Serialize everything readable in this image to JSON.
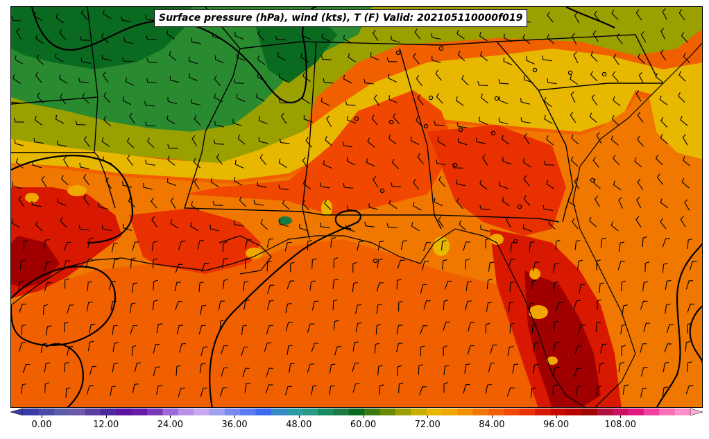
{
  "title": "Surface pressure (hPa), wind (kts), T (F) Valid: 202105110000f019",
  "colorbar": {
    "ticks": [
      "0.00",
      "12.00",
      "24.00",
      "36.00",
      "48.00",
      "60.00",
      "72.00",
      "84.00",
      "96.00",
      "108.00"
    ],
    "colors": [
      "#3b3ba8",
      "#4a4aa8",
      "#5c5ca8",
      "#6c5aa8",
      "#5a3fa0",
      "#4b2a9c",
      "#5a14a0",
      "#6a1aa8",
      "#7a3ab8",
      "#9b6ad8",
      "#b890e8",
      "#c8a8f0",
      "#a0a0f0",
      "#7a8af0",
      "#5a7af0",
      "#3a6af0",
      "#3a8ac8",
      "#2a9aa8",
      "#2a9a88",
      "#1a8a60",
      "#1a7a40",
      "#0a6a20",
      "#3a7a10",
      "#6a8a00",
      "#9aa000",
      "#c8b000",
      "#e8b800",
      "#f0a800",
      "#f09000",
      "#f07800",
      "#f06000",
      "#f04800",
      "#e83000",
      "#d81800",
      "#c80800",
      "#b80000",
      "#a00000",
      "#b01040",
      "#c81060",
      "#e01880",
      "#f040a0",
      "#f870b8",
      "#ff90c8"
    ]
  },
  "map": {
    "background_temp_colors": {
      "cool_green": "#1a7a30",
      "mid_green": "#3a8a20",
      "olive": "#9aa000",
      "yellow": "#e8b800",
      "light_orange": "#f0a000",
      "orange": "#f07800",
      "red_orange": "#f04800",
      "red": "#d81800",
      "dark_red": "#a00000"
    }
  }
}
